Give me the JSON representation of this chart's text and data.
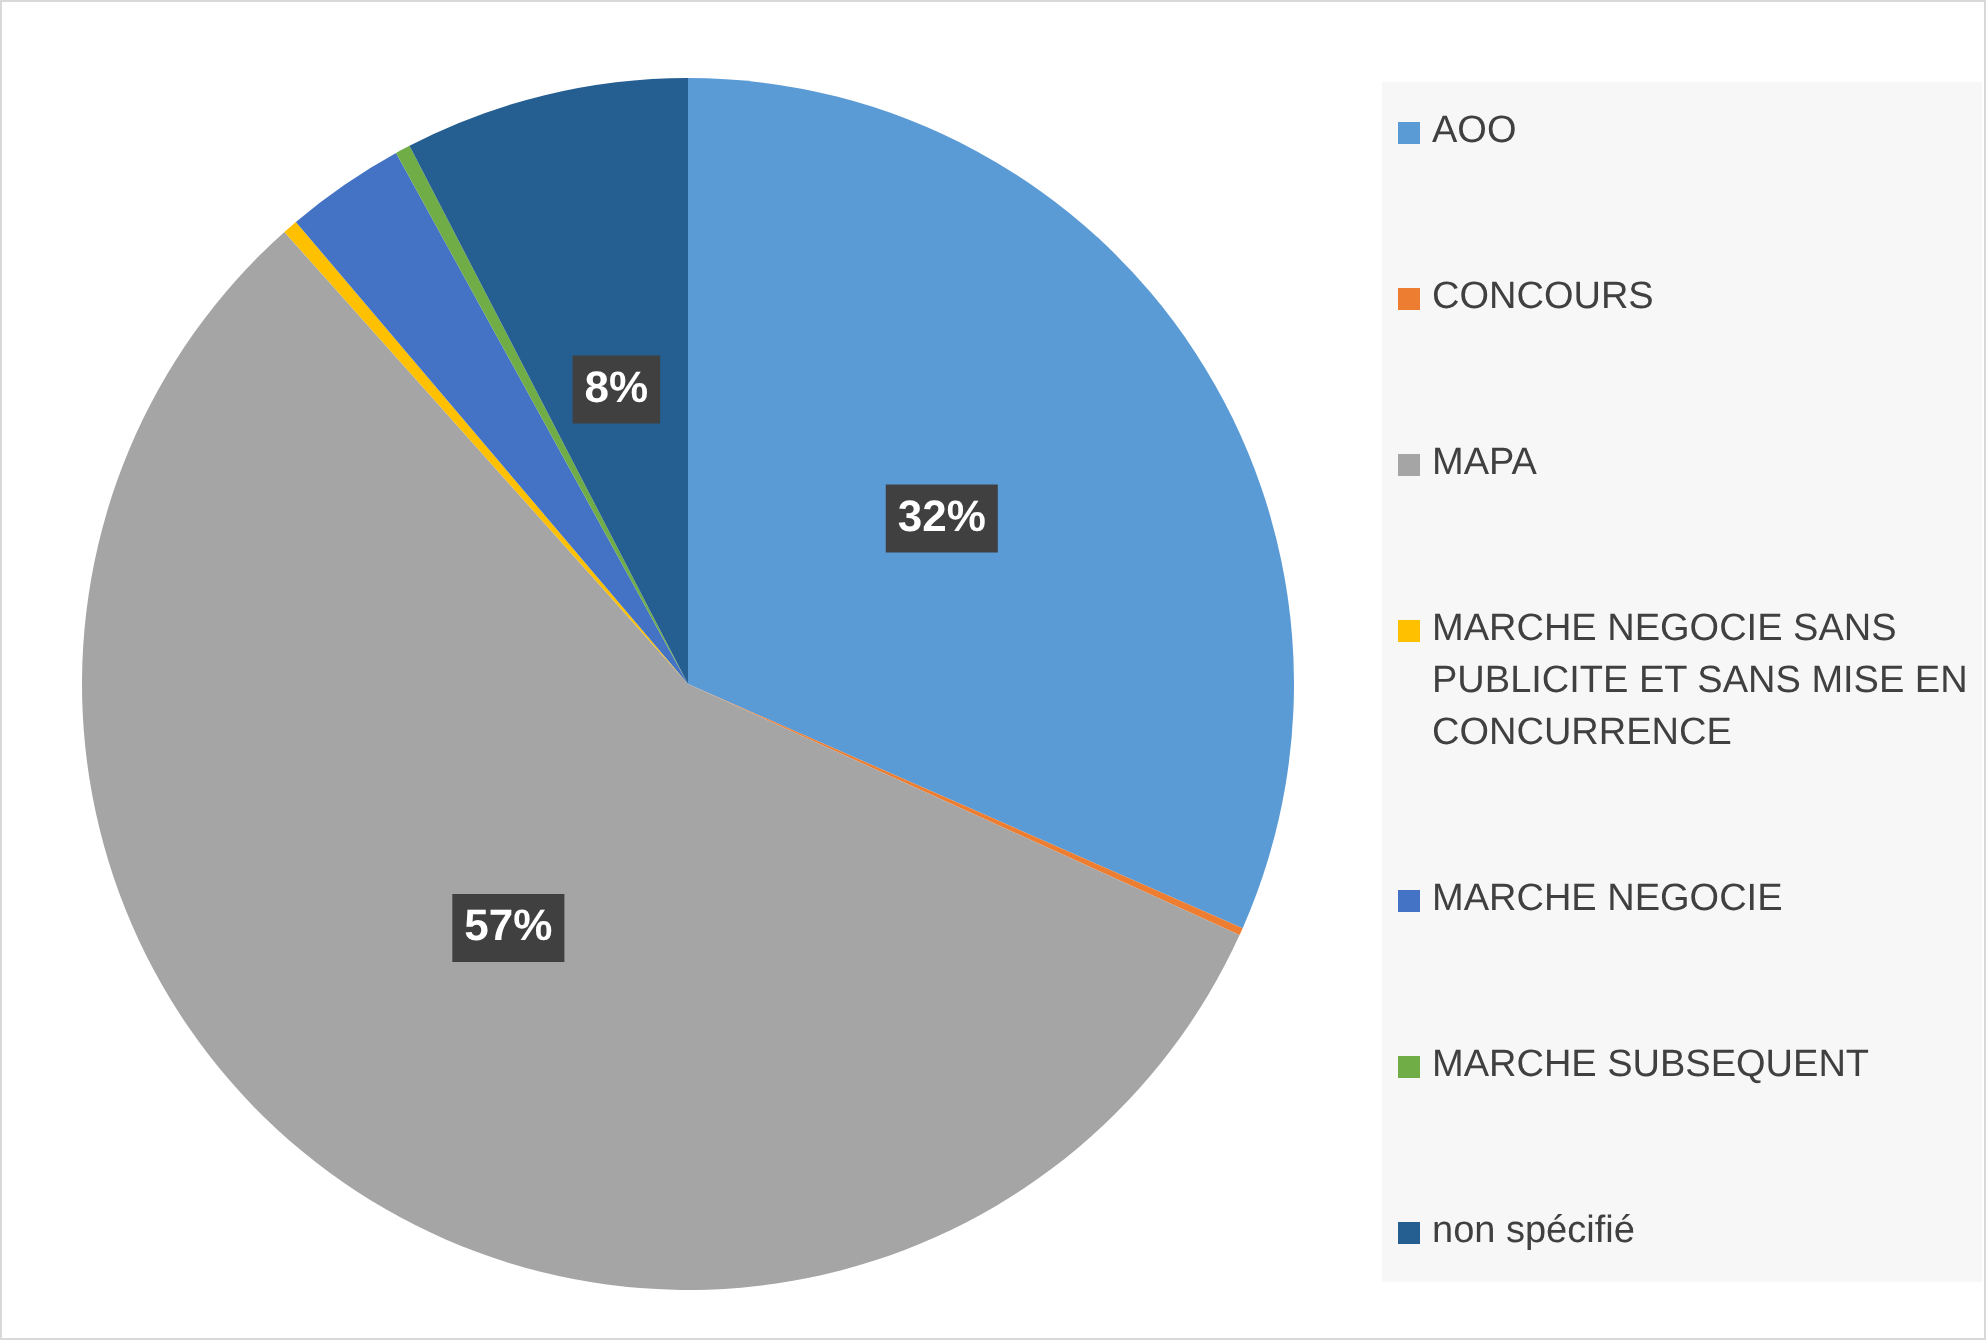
{
  "chart_data": {
    "type": "pie",
    "categories": [
      "AOO",
      "CONCOURS",
      "MAPA",
      "MARCHE NEGOCIE SANS PUBLICITE ET SANS MISE EN CONCURRENCE",
      "MARCHE NEGOCIE",
      "MARCHE SUBSEQUENT",
      "non spécifié"
    ],
    "values": [
      31.6,
      0.2,
      56.6,
      0.4,
      3.2,
      0.4,
      7.6
    ],
    "colors": [
      "#5b9bd5",
      "#ed7d31",
      "#a5a5a5",
      "#ffc000",
      "#4472c4",
      "#70ad47",
      "#255e91"
    ],
    "value_labels": [
      "32%",
      null,
      "57%",
      null,
      null,
      null,
      "8%"
    ],
    "legend": "right"
  }
}
